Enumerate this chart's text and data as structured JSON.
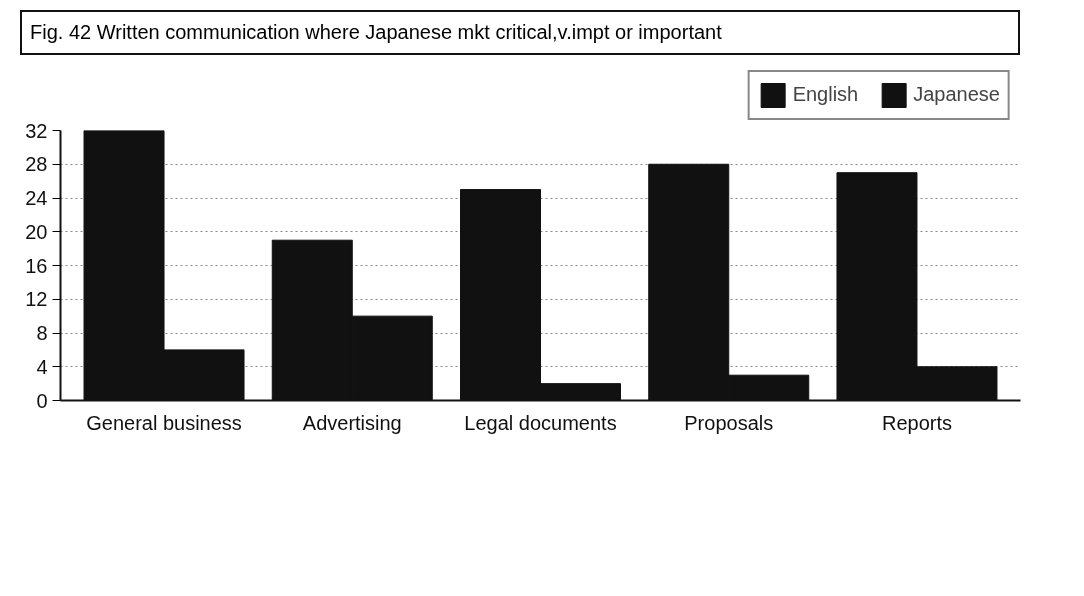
{
  "chart_data": {
    "type": "bar",
    "title": "Fig. 42 Written communication where Japanese mkt critical,v.impt or important",
    "categories": [
      "General business",
      "Advertising",
      "Legal documents",
      "Proposals",
      "Reports"
    ],
    "series": [
      {
        "name": "English",
        "color": "#111111",
        "values": [
          32,
          19,
          25,
          28,
          27
        ]
      },
      {
        "name": "Japanese",
        "color": "#111111",
        "values": [
          6,
          10,
          2,
          3,
          4
        ]
      }
    ],
    "ylim": [
      0,
      32
    ],
    "yticks": [
      0,
      4,
      8,
      12,
      16,
      20,
      24,
      28,
      32
    ],
    "grid": "y",
    "legend": "top right"
  }
}
